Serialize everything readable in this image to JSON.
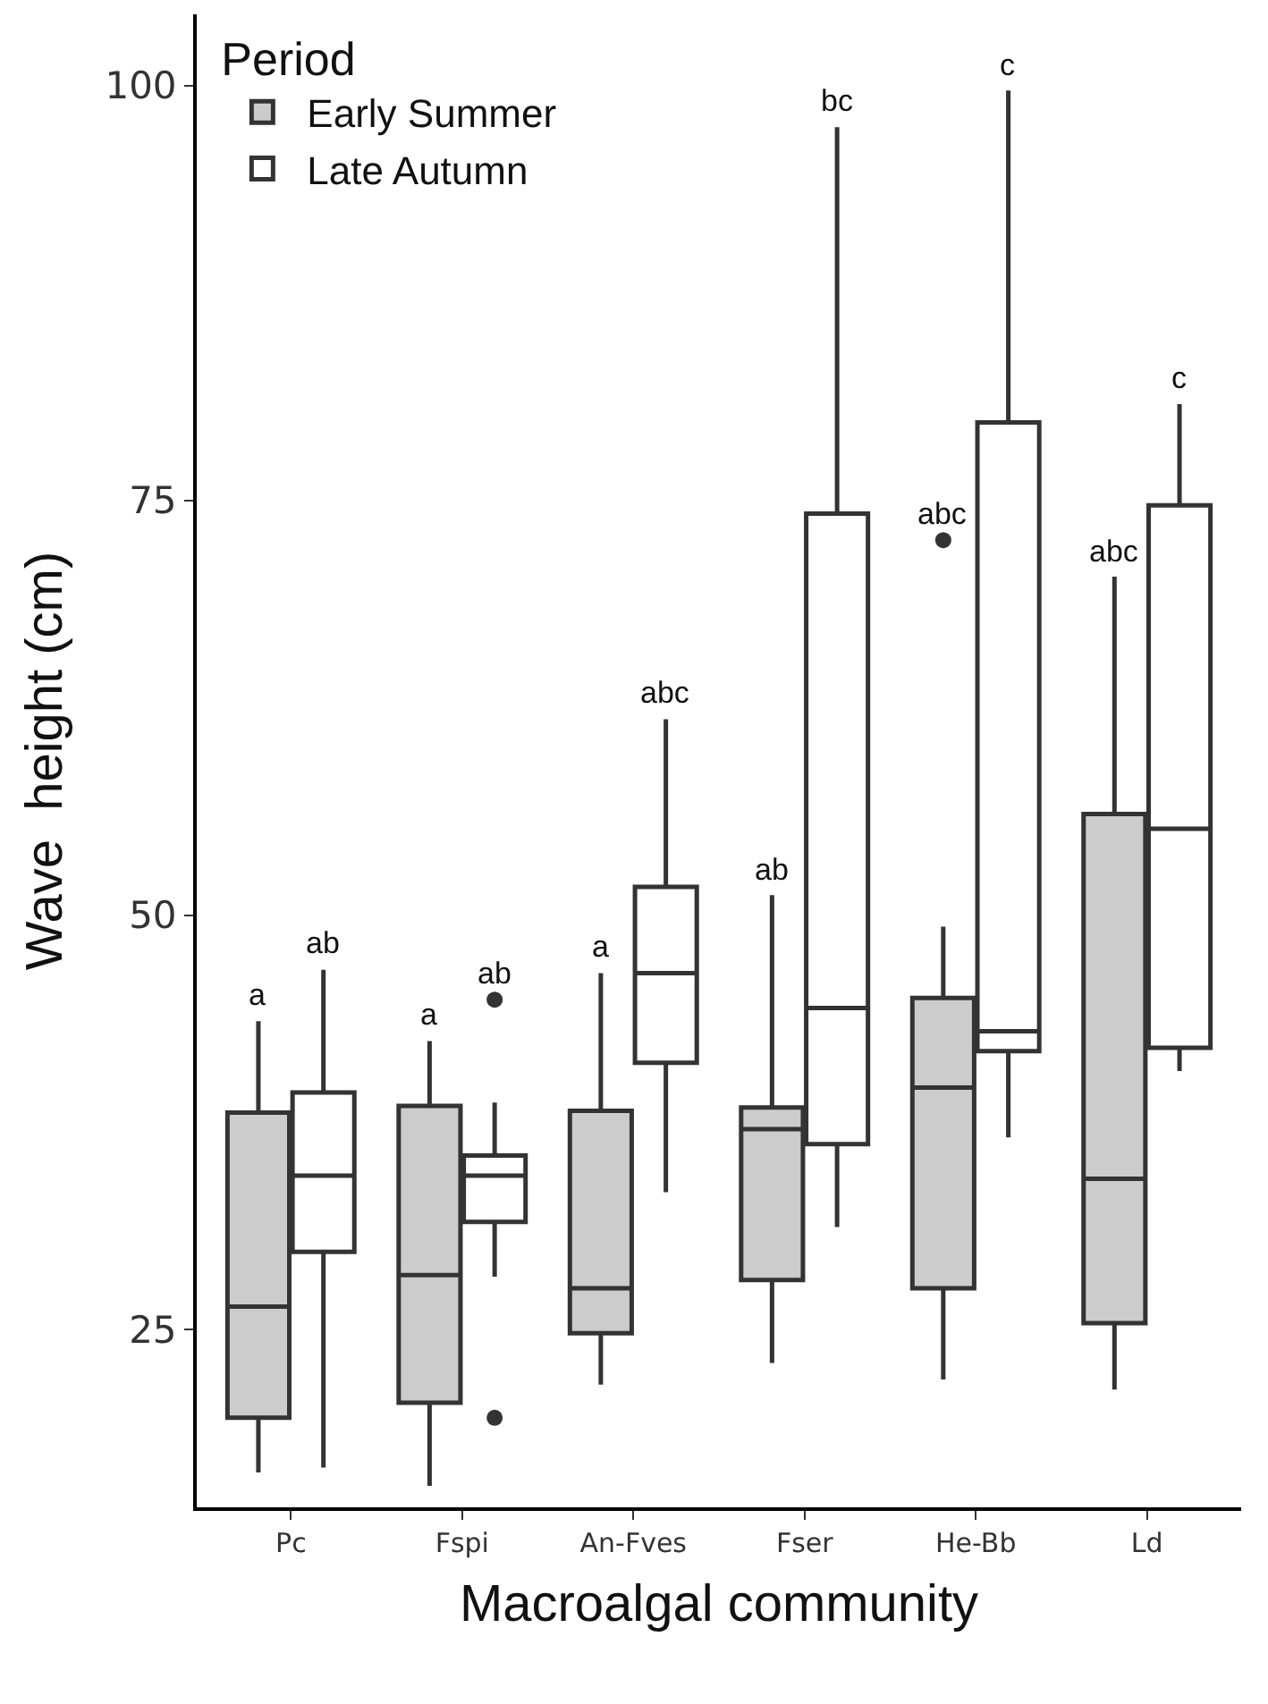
{
  "chart_data": {
    "type": "box",
    "xlabel": "Macroalgal community",
    "ylabel": "Wave  height (cm)",
    "legend_title": "Period",
    "categories": [
      "Pc",
      "Fspi",
      "An-Fves",
      "Fser",
      "He-Bb",
      "Ld"
    ],
    "series": [
      {
        "name": "Early Summer",
        "color": "#cccccc",
        "boxes": [
          {
            "low": 16.4,
            "q1": 19.7,
            "median": 26.4,
            "q3": 38.1,
            "high": 43.6
          },
          {
            "low": 15.6,
            "q1": 20.6,
            "median": 28.3,
            "q3": 38.5,
            "high": 42.4
          },
          {
            "low": 21.7,
            "q1": 24.8,
            "median": 27.5,
            "q3": 38.2,
            "high": 46.5
          },
          {
            "low": 23.0,
            "q1": 28.0,
            "median": 37.1,
            "q3": 38.4,
            "high": 51.2
          },
          {
            "low": 22.0,
            "q1": 27.5,
            "median": 39.6,
            "q3": 45.0,
            "high": 49.3,
            "outliers": [
              72.6
            ]
          },
          {
            "low": 21.4,
            "q1": 25.4,
            "median": 34.1,
            "q3": 56.1,
            "high": 70.4
          }
        ]
      },
      {
        "name": "Late Autumn",
        "color": "#ffffff",
        "boxes": [
          {
            "low": 16.7,
            "q1": 29.7,
            "median": 34.3,
            "q3": 39.3,
            "high": 46.7
          },
          {
            "low": 28.2,
            "q1": 31.5,
            "median": 34.3,
            "q3": 35.5,
            "high": 38.7,
            "outliers": [
              44.9,
              19.7
            ]
          },
          {
            "low": 33.3,
            "q1": 41.1,
            "median": 46.5,
            "q3": 51.7,
            "high": 61.8
          },
          {
            "low": 31.2,
            "q1": 36.2,
            "median": 44.4,
            "q3": 74.2,
            "high": 97.5
          },
          {
            "low": 36.6,
            "q1": 41.8,
            "median": 43.0,
            "q3": 79.7,
            "high": 99.7
          },
          {
            "low": 40.6,
            "q1": 42.0,
            "median": 55.2,
            "q3": 74.7,
            "high": 80.8
          }
        ]
      }
    ],
    "annotations": [
      "a",
      "ab",
      "a",
      "ab",
      "a",
      "abc",
      "ab",
      "bc",
      "abc",
      "c",
      "abc",
      "c"
    ],
    "ylim": [
      14.3,
      104.3
    ],
    "yticks": [
      25,
      50,
      75,
      100
    ],
    "legend": "top left"
  }
}
